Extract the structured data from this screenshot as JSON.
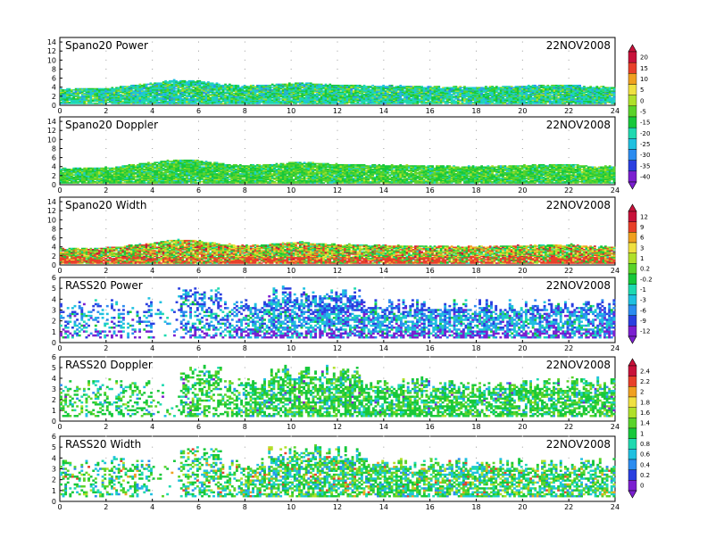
{
  "chart_data": [
    {
      "type": "heatmap",
      "title": "Spano20 Power",
      "date": "22NOV2008",
      "xlim": [
        0,
        24
      ],
      "xticks": [
        0,
        2,
        4,
        6,
        8,
        10,
        12,
        14,
        16,
        18,
        20,
        22,
        24
      ],
      "ylim": [
        0,
        15
      ],
      "yticks": [
        0,
        2,
        4,
        6,
        8,
        10,
        12,
        14
      ],
      "grid": true,
      "echo_top_x": [
        0,
        2,
        4,
        5,
        6,
        7,
        8,
        10,
        10.5,
        11,
        12,
        14,
        16,
        18,
        20,
        22,
        23,
        24
      ],
      "echo_top_y": [
        3.6,
        3.7,
        4.8,
        5.5,
        5.3,
        4.6,
        4.2,
        4.8,
        5.0,
        4.7,
        4.5,
        4.3,
        4.1,
        4.0,
        4.2,
        4.5,
        4.0,
        4.0
      ],
      "value_levels": [
        -40,
        -35,
        -30,
        -25,
        -20,
        -15,
        -5,
        0,
        5,
        10,
        15,
        20
      ]
    },
    {
      "type": "heatmap",
      "title": "Spano20 Doppler",
      "date": "22NOV2008",
      "xlim": [
        0,
        24
      ],
      "xticks": [
        0,
        2,
        4,
        6,
        8,
        10,
        12,
        14,
        16,
        18,
        20,
        22,
        24
      ],
      "ylim": [
        0,
        15
      ],
      "yticks": [
        0,
        2,
        4,
        6,
        8,
        10,
        12,
        14
      ],
      "grid": true,
      "echo_top_x": [
        0,
        2,
        4,
        5,
        6,
        7,
        8,
        10,
        10.5,
        11,
        12,
        14,
        16,
        18,
        20,
        22,
        23,
        24
      ],
      "echo_top_y": [
        3.6,
        3.7,
        4.8,
        5.5,
        5.3,
        4.6,
        4.2,
        4.8,
        5.0,
        4.7,
        4.5,
        4.3,
        4.1,
        4.0,
        4.2,
        4.5,
        4.0,
        4.0
      ],
      "value_levels": [
        -40,
        -35,
        -30,
        -25,
        -20,
        -15,
        -5,
        0,
        5,
        10,
        15,
        20
      ]
    },
    {
      "type": "heatmap",
      "title": "Spano20 Width",
      "date": "22NOV2008",
      "xlim": [
        0,
        24
      ],
      "xticks": [
        0,
        2,
        4,
        6,
        8,
        10,
        12,
        14,
        16,
        18,
        20,
        22,
        24
      ],
      "ylim": [
        0,
        15
      ],
      "yticks": [
        0,
        2,
        4,
        6,
        8,
        10,
        12,
        14
      ],
      "grid": true,
      "echo_top_x": [
        0,
        2,
        4,
        5,
        6,
        7,
        8,
        10,
        10.5,
        11,
        12,
        14,
        16,
        18,
        20,
        22,
        23,
        24
      ],
      "echo_top_y": [
        3.6,
        3.7,
        4.8,
        5.5,
        5.3,
        4.6,
        4.2,
        4.8,
        5.0,
        4.7,
        4.5,
        4.3,
        4.1,
        4.0,
        4.2,
        4.5,
        4.0,
        4.0
      ],
      "value_levels": [
        -12,
        -9,
        -6,
        -3,
        -1,
        -0.2,
        0.2,
        1,
        3,
        6,
        9,
        12
      ]
    },
    {
      "type": "heatmap",
      "title": "RASS20 Power",
      "date": "22NOV2008",
      "xlim": [
        0,
        24
      ],
      "xticks": [
        0,
        2,
        4,
        6,
        8,
        10,
        12,
        14,
        16,
        18,
        20,
        22,
        24
      ],
      "ylim": [
        0,
        6
      ],
      "yticks": [
        0,
        1,
        2,
        3,
        4,
        5,
        6
      ],
      "grid": true,
      "value_levels": [
        -12,
        -9,
        -6,
        -3,
        -1,
        -0.2,
        0.2,
        1,
        3,
        6,
        9,
        12
      ]
    },
    {
      "type": "heatmap",
      "title": "RASS20 Doppler",
      "date": "22NOV2008",
      "xlim": [
        0,
        24
      ],
      "xticks": [
        0,
        2,
        4,
        6,
        8,
        10,
        12,
        14,
        16,
        18,
        20,
        22,
        24
      ],
      "ylim": [
        0,
        6
      ],
      "yticks": [
        0,
        1,
        2,
        3,
        4,
        5,
        6
      ],
      "grid": true,
      "value_levels": [
        0,
        0.2,
        0.4,
        0.6,
        0.8,
        1,
        1.4,
        1.6,
        1.8,
        2,
        2.2,
        2.4
      ]
    },
    {
      "type": "heatmap",
      "title": "RASS20 Width",
      "date": "22NOV2008",
      "xlim": [
        0,
        24
      ],
      "xticks": [
        0,
        2,
        4,
        6,
        8,
        10,
        12,
        14,
        16,
        18,
        20,
        22,
        24
      ],
      "ylim": [
        0,
        6
      ],
      "yticks": [
        0,
        1,
        2,
        3,
        4,
        5,
        6
      ],
      "grid": true,
      "value_levels": [
        0,
        0.2,
        0.4,
        0.6,
        0.8,
        1,
        1.4,
        1.6,
        1.8,
        2,
        2.2,
        2.4
      ]
    }
  ],
  "colorbars": [
    {
      "labels": [
        "20",
        "15",
        "10",
        "5",
        "0",
        "-5",
        "-15",
        "-20",
        "-25",
        "-30",
        "-35",
        "-40"
      ]
    },
    {
      "labels": [
        "12",
        "9",
        "6",
        "3",
        "1",
        "0.2",
        "-0.2",
        "-1",
        "-3",
        "-6",
        "-9",
        "-12"
      ]
    },
    {
      "labels": [
        "2.4",
        "2.2",
        "2",
        "1.8",
        "1.6",
        "1.4",
        "1",
        "0.8",
        "0.6",
        "0.4",
        "0.2",
        "0"
      ]
    }
  ],
  "palette": [
    "#7b1fd0",
    "#2a3fe0",
    "#2c8cf0",
    "#1fc0e0",
    "#1ed9b0",
    "#17c83a",
    "#5ad32a",
    "#b0e02a",
    "#f0e040",
    "#f0a020",
    "#e8402a",
    "#c8123a"
  ]
}
